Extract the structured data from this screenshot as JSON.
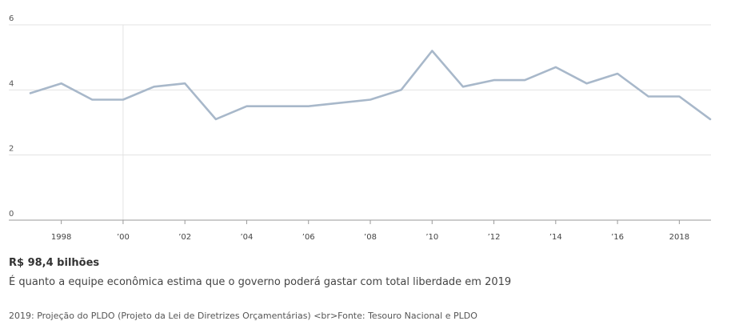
{
  "headline": "R$ 98,4 bilhões",
  "subtitle": "É quanto a equipe econômica estima que o governo poderá gastar com total liberdade em 2019",
  "footnote": "2019: Projeção do PLDO (Projeto da Lei de Diretrizes Orçamentárias) <br>Fonte: Tesouro Nacional e PLDO",
  "chart_data": {
    "type": "line",
    "title": "",
    "xlabel": "",
    "ylabel": "",
    "ylim": [
      0,
      6
    ],
    "xlim": [
      1997,
      2019
    ],
    "y_ticks": [
      0,
      2,
      4,
      6
    ],
    "y_tick_labels": [
      "0",
      "2",
      "4",
      "6"
    ],
    "x_ticks": [
      1998,
      2000,
      2002,
      2004,
      2006,
      2008,
      2010,
      2012,
      2014,
      2016,
      2018
    ],
    "x_tick_labels": [
      "1998",
      "’00",
      "’02",
      "’04",
      "’06",
      "’08",
      "’10",
      "’12",
      "’14",
      "’16",
      "2018"
    ],
    "grid": "horizontal",
    "line_color": "#a8b8ca",
    "series": [
      {
        "x": [
          1997,
          1998,
          1999,
          2000,
          2001,
          2002,
          2003,
          2004,
          2005,
          2006,
          2007,
          2008,
          2009,
          2010,
          2011,
          2012,
          2013,
          2014,
          2015,
          2016,
          2017,
          2018,
          2019
        ],
        "values": [
          3.9,
          4.2,
          3.7,
          3.7,
          4.1,
          4.2,
          3.1,
          3.5,
          3.5,
          3.5,
          3.6,
          3.7,
          4.0,
          5.2,
          4.1,
          4.3,
          4.3,
          4.7,
          4.2,
          4.5,
          3.8,
          3.8,
          3.1
        ]
      }
    ]
  }
}
